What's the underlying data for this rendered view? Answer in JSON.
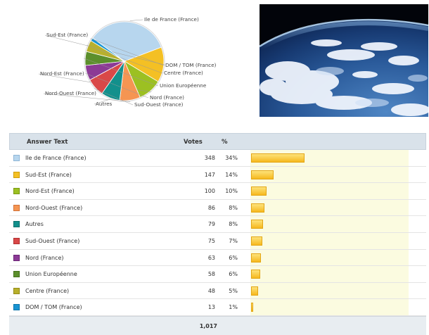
{
  "table": {
    "headers": {
      "answer": "Answer Text",
      "votes": "Votes",
      "pct": "%"
    },
    "rows": [
      {
        "label": "Ile de France (France)",
        "votes": "348",
        "pct": "34%",
        "value": 348,
        "color": "#b7d6ee",
        "border": "#8fb6d6"
      },
      {
        "label": "Sud-Est (France)",
        "votes": "147",
        "pct": "14%",
        "value": 147,
        "color": "#f4c024",
        "border": "#cf9d0c"
      },
      {
        "label": "Nord-Est (France)",
        "votes": "100",
        "pct": "10%",
        "value": 100,
        "color": "#9cc022",
        "border": "#7a9912"
      },
      {
        "label": "Nord-Ouest (France)",
        "votes": "86",
        "pct": "8%",
        "value": 86,
        "color": "#f59552",
        "border": "#d2733a"
      },
      {
        "label": "Autres",
        "votes": "79",
        "pct": "8%",
        "value": 79,
        "color": "#13908c",
        "border": "#0c706c"
      },
      {
        "label": "Sud-Ouest (France)",
        "votes": "75",
        "pct": "7%",
        "value": 75,
        "color": "#d94848",
        "border": "#b23030"
      },
      {
        "label": "Nord (France)",
        "votes": "63",
        "pct": "6%",
        "value": 63,
        "color": "#8c3a96",
        "border": "#6c2676"
      },
      {
        "label": "Union Européenne",
        "votes": "58",
        "pct": "6%",
        "value": 58,
        "color": "#5c8f2c",
        "border": "#44701a"
      },
      {
        "label": "Centre (France)",
        "votes": "48",
        "pct": "5%",
        "value": 48,
        "color": "#b8b02c",
        "border": "#938b16"
      },
      {
        "label": "DOM / TOM (France)",
        "votes": "13",
        "pct": "1%",
        "value": 13,
        "color": "#1894d2",
        "border": "#0c74aa"
      }
    ],
    "total": "1,017"
  },
  "chart_data": {
    "type": "pie",
    "categories": [
      "Ile de France (France)",
      "Sud-Est (France)",
      "Nord-Est (France)",
      "Nord-Ouest (France)",
      "Autres",
      "Sud-Ouest (France)",
      "Nord (France)",
      "Union Européenne",
      "Centre (France)",
      "DOM / TOM (France)"
    ],
    "values": [
      348,
      147,
      100,
      86,
      79,
      75,
      63,
      58,
      48,
      13
    ],
    "colors": [
      "#b7d6ee",
      "#f4c024",
      "#9cc022",
      "#f59552",
      "#13908c",
      "#d94848",
      "#8c3a96",
      "#5c8f2c",
      "#b8b02c",
      "#1894d2"
    ],
    "bar_max": 348
  },
  "image": {
    "name": "earth-from-space-photo"
  }
}
